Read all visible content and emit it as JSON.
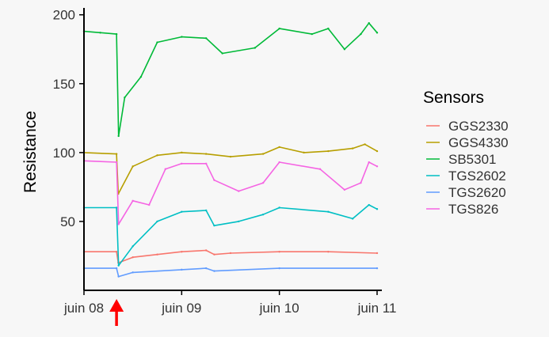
{
  "chart_data": {
    "type": "line",
    "title": "",
    "xlabel": "",
    "ylabel": "Resistance",
    "ylim": [
      0,
      205
    ],
    "xlim": [
      "2021-06-08T00:00",
      "2021-06-11T00:00"
    ],
    "x_ticks": [
      {
        "x": "2021-06-08T00:00",
        "label": "juin 08"
      },
      {
        "x": "2021-06-09T00:00",
        "label": "juin 09"
      },
      {
        "x": "2021-06-10T00:00",
        "label": "juin 10"
      },
      {
        "x": "2021-06-11T00:00",
        "label": "juin 11"
      }
    ],
    "y_ticks": [
      {
        "y": 50,
        "label": "50"
      },
      {
        "y": 100,
        "label": "100"
      },
      {
        "y": 150,
        "label": "150"
      },
      {
        "y": 200,
        "label": "200"
      }
    ],
    "grid": false,
    "legend": {
      "title": "Sensors",
      "placement": "right"
    },
    "series": [
      {
        "name": "GGS2330",
        "color": "#F8766D",
        "points": [
          {
            "x": "2021-06-08T00:00",
            "y": 28
          },
          {
            "x": "2021-06-08T08:00",
            "y": 28
          },
          {
            "x": "2021-06-08T08:25",
            "y": 20
          },
          {
            "x": "2021-06-08T12:00",
            "y": 24
          },
          {
            "x": "2021-06-08T18:00",
            "y": 26
          },
          {
            "x": "2021-06-09T00:00",
            "y": 28
          },
          {
            "x": "2021-06-09T06:00",
            "y": 29
          },
          {
            "x": "2021-06-09T08:00",
            "y": 26
          },
          {
            "x": "2021-06-09T12:00",
            "y": 27
          },
          {
            "x": "2021-06-10T00:00",
            "y": 28
          },
          {
            "x": "2021-06-10T12:00",
            "y": 28
          },
          {
            "x": "2021-06-11T00:00",
            "y": 27
          }
        ]
      },
      {
        "name": "GGS4330",
        "color": "#B79F00",
        "points": [
          {
            "x": "2021-06-08T00:00",
            "y": 100
          },
          {
            "x": "2021-06-08T08:00",
            "y": 99
          },
          {
            "x": "2021-06-08T08:25",
            "y": 70
          },
          {
            "x": "2021-06-08T12:00",
            "y": 90
          },
          {
            "x": "2021-06-08T18:00",
            "y": 98
          },
          {
            "x": "2021-06-09T00:00",
            "y": 100
          },
          {
            "x": "2021-06-09T06:00",
            "y": 99
          },
          {
            "x": "2021-06-09T12:00",
            "y": 97
          },
          {
            "x": "2021-06-09T20:00",
            "y": 99
          },
          {
            "x": "2021-06-10T00:00",
            "y": 104
          },
          {
            "x": "2021-06-10T06:00",
            "y": 100
          },
          {
            "x": "2021-06-10T12:00",
            "y": 101
          },
          {
            "x": "2021-06-10T18:00",
            "y": 103
          },
          {
            "x": "2021-06-10T21:00",
            "y": 106
          },
          {
            "x": "2021-06-11T00:00",
            "y": 101
          }
        ]
      },
      {
        "name": "SB5301",
        "color": "#00BA38",
        "points": [
          {
            "x": "2021-06-08T00:00",
            "y": 188
          },
          {
            "x": "2021-06-08T04:00",
            "y": 187
          },
          {
            "x": "2021-06-08T08:00",
            "y": 186
          },
          {
            "x": "2021-06-08T08:30",
            "y": 112
          },
          {
            "x": "2021-06-08T10:00",
            "y": 140
          },
          {
            "x": "2021-06-08T14:00",
            "y": 155
          },
          {
            "x": "2021-06-08T18:00",
            "y": 180
          },
          {
            "x": "2021-06-09T00:00",
            "y": 184
          },
          {
            "x": "2021-06-09T06:00",
            "y": 183
          },
          {
            "x": "2021-06-09T10:00",
            "y": 172
          },
          {
            "x": "2021-06-09T18:00",
            "y": 176
          },
          {
            "x": "2021-06-10T00:00",
            "y": 190
          },
          {
            "x": "2021-06-10T08:00",
            "y": 186
          },
          {
            "x": "2021-06-10T12:00",
            "y": 190
          },
          {
            "x": "2021-06-10T16:00",
            "y": 175
          },
          {
            "x": "2021-06-10T20:00",
            "y": 186
          },
          {
            "x": "2021-06-10T22:00",
            "y": 194
          },
          {
            "x": "2021-06-11T00:00",
            "y": 187
          }
        ]
      },
      {
        "name": "TGS2602",
        "color": "#00BFC4",
        "points": [
          {
            "x": "2021-06-08T00:00",
            "y": 60
          },
          {
            "x": "2021-06-08T08:00",
            "y": 60
          },
          {
            "x": "2021-06-08T08:30",
            "y": 18
          },
          {
            "x": "2021-06-08T12:00",
            "y": 32
          },
          {
            "x": "2021-06-08T18:00",
            "y": 50
          },
          {
            "x": "2021-06-09T00:00",
            "y": 57
          },
          {
            "x": "2021-06-09T06:00",
            "y": 58
          },
          {
            "x": "2021-06-09T08:00",
            "y": 47
          },
          {
            "x": "2021-06-09T14:00",
            "y": 50
          },
          {
            "x": "2021-06-09T20:00",
            "y": 55
          },
          {
            "x": "2021-06-10T00:00",
            "y": 60
          },
          {
            "x": "2021-06-10T12:00",
            "y": 57
          },
          {
            "x": "2021-06-10T18:00",
            "y": 52
          },
          {
            "x": "2021-06-10T22:00",
            "y": 62
          },
          {
            "x": "2021-06-11T00:00",
            "y": 59
          }
        ]
      },
      {
        "name": "TGS2620",
        "color": "#619CFF",
        "points": [
          {
            "x": "2021-06-08T00:00",
            "y": 16
          },
          {
            "x": "2021-06-08T08:00",
            "y": 16
          },
          {
            "x": "2021-06-08T08:30",
            "y": 10
          },
          {
            "x": "2021-06-08T12:00",
            "y": 13
          },
          {
            "x": "2021-06-09T00:00",
            "y": 15
          },
          {
            "x": "2021-06-09T06:00",
            "y": 16
          },
          {
            "x": "2021-06-09T08:00",
            "y": 14
          },
          {
            "x": "2021-06-10T00:00",
            "y": 16
          },
          {
            "x": "2021-06-11T00:00",
            "y": 16
          }
        ]
      },
      {
        "name": "TGS826",
        "color": "#F564E3",
        "points": [
          {
            "x": "2021-06-08T00:00",
            "y": 94
          },
          {
            "x": "2021-06-08T08:00",
            "y": 93
          },
          {
            "x": "2021-06-08T08:30",
            "y": 48
          },
          {
            "x": "2021-06-08T12:00",
            "y": 65
          },
          {
            "x": "2021-06-08T16:00",
            "y": 62
          },
          {
            "x": "2021-06-08T20:00",
            "y": 88
          },
          {
            "x": "2021-06-09T00:00",
            "y": 92
          },
          {
            "x": "2021-06-09T06:00",
            "y": 92
          },
          {
            "x": "2021-06-09T08:00",
            "y": 80
          },
          {
            "x": "2021-06-09T14:00",
            "y": 72
          },
          {
            "x": "2021-06-09T20:00",
            "y": 78
          },
          {
            "x": "2021-06-10T00:00",
            "y": 93
          },
          {
            "x": "2021-06-10T10:00",
            "y": 88
          },
          {
            "x": "2021-06-10T16:00",
            "y": 73
          },
          {
            "x": "2021-06-10T20:00",
            "y": 78
          },
          {
            "x": "2021-06-10T22:00",
            "y": 93
          },
          {
            "x": "2021-06-11T00:00",
            "y": 90
          }
        ]
      }
    ],
    "annotations": [
      {
        "type": "arrow",
        "color": "#FF0000",
        "x": "2021-06-08T08:00"
      }
    ]
  }
}
